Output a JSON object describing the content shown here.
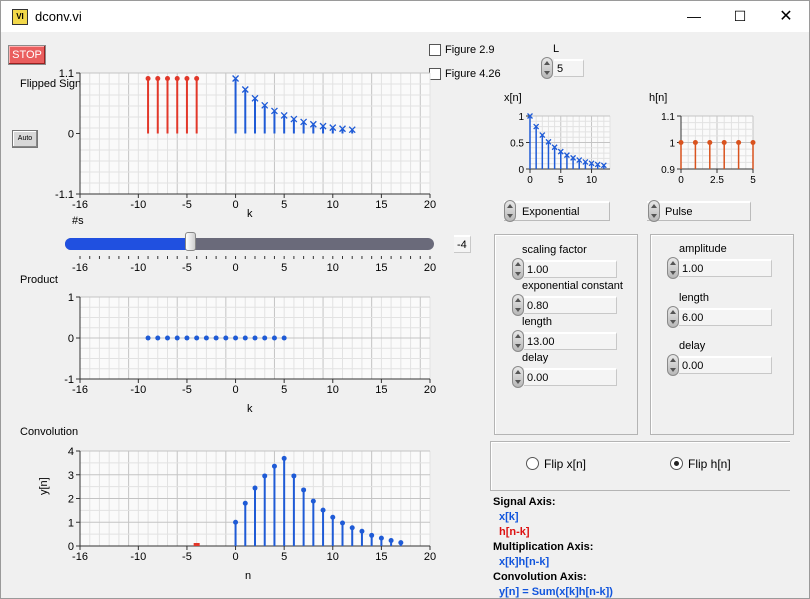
{
  "window": {
    "title": "dconv.vi",
    "minimize_icon": "minimize-icon",
    "maximize_icon": "maximize-icon",
    "close_icon": "close-icon"
  },
  "controls": {
    "stop_label": "STOP",
    "auto_label": "Auto",
    "figure29_label": "Figure 2.9",
    "figure426_label": "Figure 4.26",
    "L_label": "L",
    "L_value": "5",
    "shift_label": "#s",
    "shift_value": "-4",
    "shift_fraction": 0.32
  },
  "charts_text": {
    "flipped_title": "Flipped Signal",
    "product_title": "Product",
    "convolution_title": "Convolution",
    "k_label": "k",
    "n_label": "n",
    "yn_label": "y[n]",
    "xn_title": "x[n]",
    "hn_title": "h[n]"
  },
  "x_signal": {
    "type_label": "Exponential",
    "scaling_label": "scaling factor",
    "scaling_value": "1.00",
    "exp_label": "exponential constant",
    "exp_value": "0.80",
    "length_label": "length",
    "length_value": "13.00",
    "delay_label": "delay",
    "delay_value": "0.00"
  },
  "h_signal": {
    "type_label": "Pulse",
    "amplitude_label": "amplitude",
    "amplitude_value": "1.00",
    "length_label": "length",
    "length_value": "6.00",
    "delay_label": "delay",
    "delay_value": "0.00"
  },
  "flip": {
    "flip_x_label": "Flip x[n]",
    "flip_h_label": "Flip h[n]",
    "selected": "h"
  },
  "legend": {
    "signal_axis": "Signal Axis:",
    "x_k": "x[k]",
    "h_nk": "h[n-k]",
    "mult_axis": "Multiplication Axis:",
    "xh": "x[k]h[n-k]",
    "conv_axis": "Convolution Axis:",
    "yn_eq": "y[n] = Sum(x[k]h[n-k])"
  },
  "colors": {
    "blue": "#1f5bd6",
    "red": "#e2382a",
    "orange": "#d9531e"
  },
  "chart_data": [
    {
      "name": "flipped",
      "type": "scatter",
      "xlim": [
        -16,
        20
      ],
      "ylim": [
        -1.1,
        1.1
      ],
      "xticks": [
        "-16",
        "-10",
        "-5",
        "0",
        "5",
        "10",
        "15",
        "20"
      ],
      "yticks": [
        "1.1",
        "0",
        "-1.1"
      ],
      "series": [
        {
          "x": [
            -9,
            -8,
            -7,
            -6,
            -5,
            -4
          ],
          "values": [
            1,
            1,
            1,
            1,
            1,
            1
          ],
          "color": "#e2382a",
          "marker": "dot"
        },
        {
          "x": [
            0,
            1,
            2,
            3,
            4,
            5,
            6,
            7,
            8,
            9,
            10,
            11,
            12
          ],
          "values": [
            1,
            0.8,
            0.64,
            0.512,
            0.41,
            0.328,
            0.262,
            0.21,
            0.168,
            0.134,
            0.107,
            0.086,
            0.069
          ],
          "color": "#1f5bd6",
          "marker": "x"
        }
      ]
    },
    {
      "name": "product",
      "type": "scatter",
      "xlim": [
        -16,
        20
      ],
      "ylim": [
        -1,
        1
      ],
      "xticks": [
        "-16",
        "-10",
        "-5",
        "0",
        "5",
        "10",
        "15",
        "20"
      ],
      "yticks": [
        "1",
        "0",
        "-1"
      ],
      "series": [
        {
          "x": [
            -9,
            -8,
            -7,
            -6,
            -5,
            -4,
            -3,
            -2,
            -1,
            0,
            1,
            2,
            3,
            4,
            5
          ],
          "values": [
            0,
            0,
            0,
            0,
            0,
            0,
            0,
            0,
            0,
            0,
            0,
            0,
            0,
            0,
            0
          ],
          "color": "#1f5bd6",
          "marker": "dot"
        }
      ]
    },
    {
      "name": "convolution",
      "type": "scatter",
      "xlim": [
        -16,
        20
      ],
      "ylim": [
        0,
        4
      ],
      "xticks": [
        "-16",
        "-10",
        "-5",
        "0",
        "5",
        "10",
        "15",
        "20"
      ],
      "yticks": [
        "4",
        "3",
        "2",
        "1",
        "0"
      ],
      "series": [
        {
          "x": [
            0,
            1,
            2,
            3,
            4,
            5,
            6,
            7,
            8,
            9,
            10,
            11,
            12,
            13,
            14,
            15,
            16,
            17
          ],
          "values": [
            1,
            1.8,
            2.44,
            2.95,
            3.36,
            3.69,
            2.95,
            2.36,
            1.89,
            1.51,
            1.21,
            0.97,
            0.77,
            0.62,
            0.45,
            0.33,
            0.23,
            0.14
          ],
          "color": "#1f5bd6",
          "marker": "dot"
        },
        {
          "x": [
            -4
          ],
          "values": [
            0
          ],
          "color": "#e2382a",
          "marker": "bar"
        }
      ]
    },
    {
      "name": "xn",
      "type": "scatter",
      "xlim": [
        0,
        13
      ],
      "ylim": [
        0,
        1
      ],
      "xticks": [
        "0",
        "5",
        "10"
      ],
      "yticks": [
        "1",
        "0.5",
        "0"
      ],
      "series": [
        {
          "x": [
            0,
            1,
            2,
            3,
            4,
            5,
            6,
            7,
            8,
            9,
            10,
            11,
            12
          ],
          "values": [
            1,
            0.8,
            0.64,
            0.512,
            0.41,
            0.328,
            0.262,
            0.21,
            0.168,
            0.134,
            0.107,
            0.086,
            0.069
          ],
          "color": "#1f5bd6",
          "marker": "x"
        }
      ]
    },
    {
      "name": "hn",
      "type": "scatter",
      "xlim": [
        0,
        5
      ],
      "ylim": [
        0.9,
        1.1
      ],
      "xticks": [
        "0",
        "2.5",
        "5"
      ],
      "yticks": [
        "1.1",
        "1",
        "0.9"
      ],
      "series": [
        {
          "x": [
            0,
            1,
            2,
            3,
            4,
            5
          ],
          "values": [
            1,
            1,
            1,
            1,
            1,
            1
          ],
          "color": "#d9531e",
          "marker": "dot"
        }
      ]
    }
  ]
}
